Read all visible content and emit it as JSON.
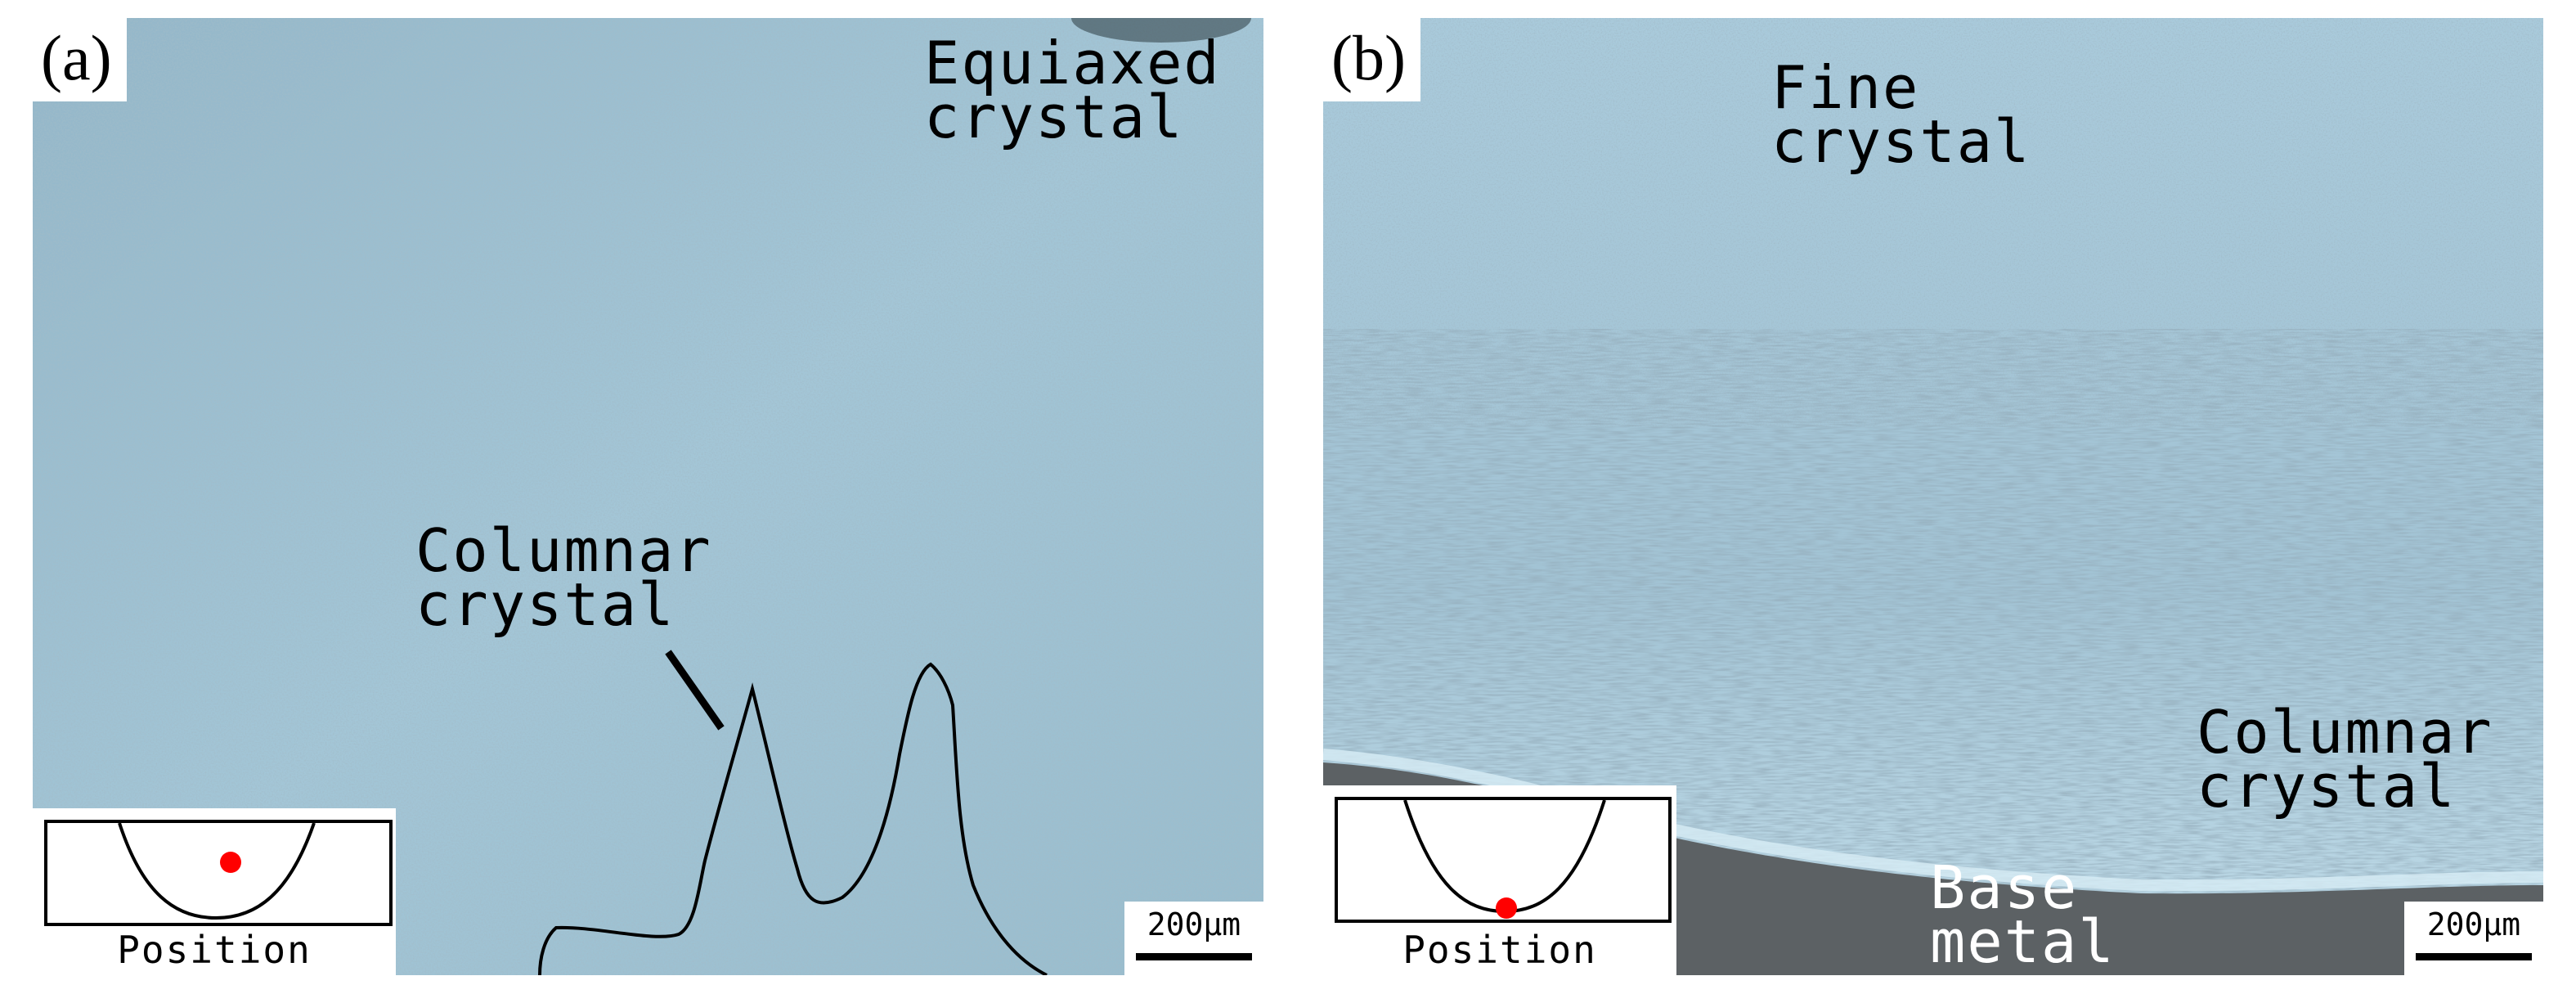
{
  "panels": [
    {
      "label": "(a)",
      "annotations": {
        "equiaxed": [
          "Equiaxed",
          "crystal"
        ],
        "columnar": [
          "Columnar",
          "crystal"
        ]
      },
      "inset_caption": "Position",
      "scale_bar": "200μm",
      "position_marker": "weld-center"
    },
    {
      "label": "(b)",
      "annotations": {
        "fine": [
          "Fine",
          "crystal"
        ],
        "columnar": [
          "Columnar",
          "crystal"
        ],
        "base": [
          "Base",
          "metal"
        ]
      },
      "inset_caption": "Position",
      "scale_bar": "200μm",
      "position_marker": "weld-bottom"
    }
  ],
  "colors": {
    "micrograph_light": "#9fc4d6",
    "micrograph_dark": "#6f8fa0",
    "base_metal": "#5f6366",
    "marker": "#ff0000"
  }
}
